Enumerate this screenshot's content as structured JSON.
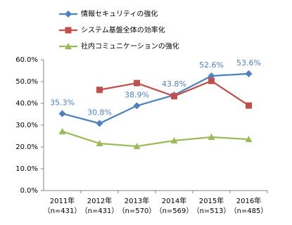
{
  "chart_data": {
    "type": "line",
    "categories": [
      "2011年",
      "2012年",
      "2013年",
      "2014年",
      "2015年",
      "2016年"
    ],
    "sample_sizes": [
      "（n=431）",
      "（n=431）",
      "（n=570）",
      "（n=569）",
      "（n=513）",
      "（n=485）"
    ],
    "series": [
      {
        "name": "情報セキュリティの強化",
        "color": "#4f81bd",
        "marker": "diamond",
        "values": [
          35.3,
          30.8,
          38.9,
          43.8,
          52.6,
          53.6
        ],
        "value_labels": [
          "35.3%",
          "30.8%",
          "38.9%",
          "43.8%",
          "52.6%",
          "53.6%"
        ]
      },
      {
        "name": "システム基盤全体の効率化",
        "color": "#c0504d",
        "marker": "square",
        "values": [
          null,
          46.2,
          49.3,
          43.3,
          50.3,
          39.0
        ]
      },
      {
        "name": "社内コミュニケーションの強化",
        "color": "#9bbb59",
        "marker": "triangle",
        "values": [
          27.1,
          21.6,
          20.3,
          22.9,
          24.5,
          23.5
        ]
      }
    ],
    "ylim": [
      0,
      60
    ],
    "yticks": [
      {
        "value": 0,
        "label": "0.0%"
      },
      {
        "value": 10,
        "label": "10.0%"
      },
      {
        "value": 20,
        "label": "20.0%"
      },
      {
        "value": 30,
        "label": "30.0%"
      },
      {
        "value": 40,
        "label": "40.0%"
      },
      {
        "value": 50,
        "label": "50.0%"
      },
      {
        "value": 60,
        "label": "60.0%"
      }
    ],
    "grid": false,
    "legend": "top-left"
  }
}
